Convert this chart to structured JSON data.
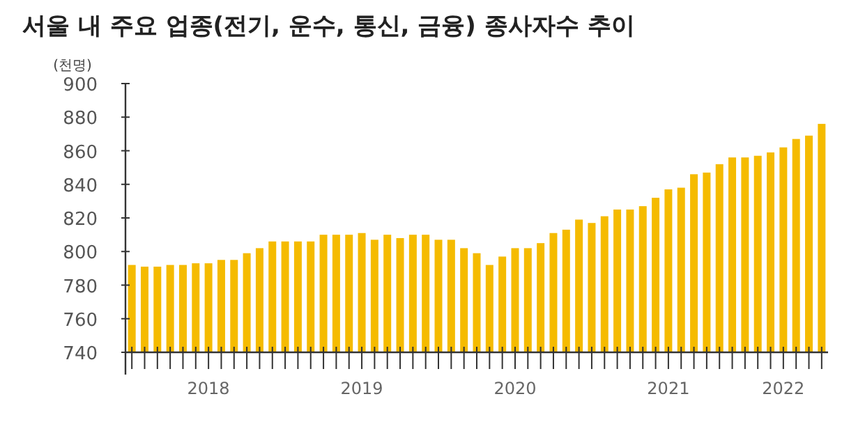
{
  "chart_data": {
    "type": "bar",
    "title": "서울 내 주요 업종(전기, 운수, 통신, 금융) 종사자수 추이",
    "ylabel": "(천명)",
    "categories": [
      null,
      null,
      null,
      null,
      null,
      null,
      "2018",
      null,
      null,
      null,
      null,
      null,
      null,
      null,
      null,
      null,
      null,
      null,
      "2019",
      null,
      null,
      null,
      null,
      null,
      null,
      null,
      null,
      null,
      null,
      null,
      "2020",
      null,
      null,
      null,
      null,
      null,
      null,
      null,
      null,
      null,
      null,
      null,
      "2021",
      null,
      null,
      null,
      null,
      null,
      null,
      null,
      null,
      "2022",
      null,
      null,
      null
    ],
    "values": [
      792,
      791,
      791,
      792,
      792,
      793,
      793,
      795,
      795,
      799,
      802,
      806,
      806,
      806,
      806,
      810,
      810,
      810,
      811,
      807,
      810,
      808,
      810,
      810,
      807,
      807,
      802,
      799,
      792,
      797,
      802,
      802,
      805,
      811,
      813,
      819,
      817,
      821,
      825,
      825,
      827,
      832,
      837,
      838,
      846,
      847,
      852,
      856,
      856,
      857,
      859,
      862,
      867,
      869,
      876
    ],
    "color": "#f5bb00",
    "ylim": [
      740,
      900
    ],
    "yticks": [
      740,
      760,
      780,
      800,
      820,
      840,
      860,
      880,
      900
    ],
    "grid": false
  }
}
